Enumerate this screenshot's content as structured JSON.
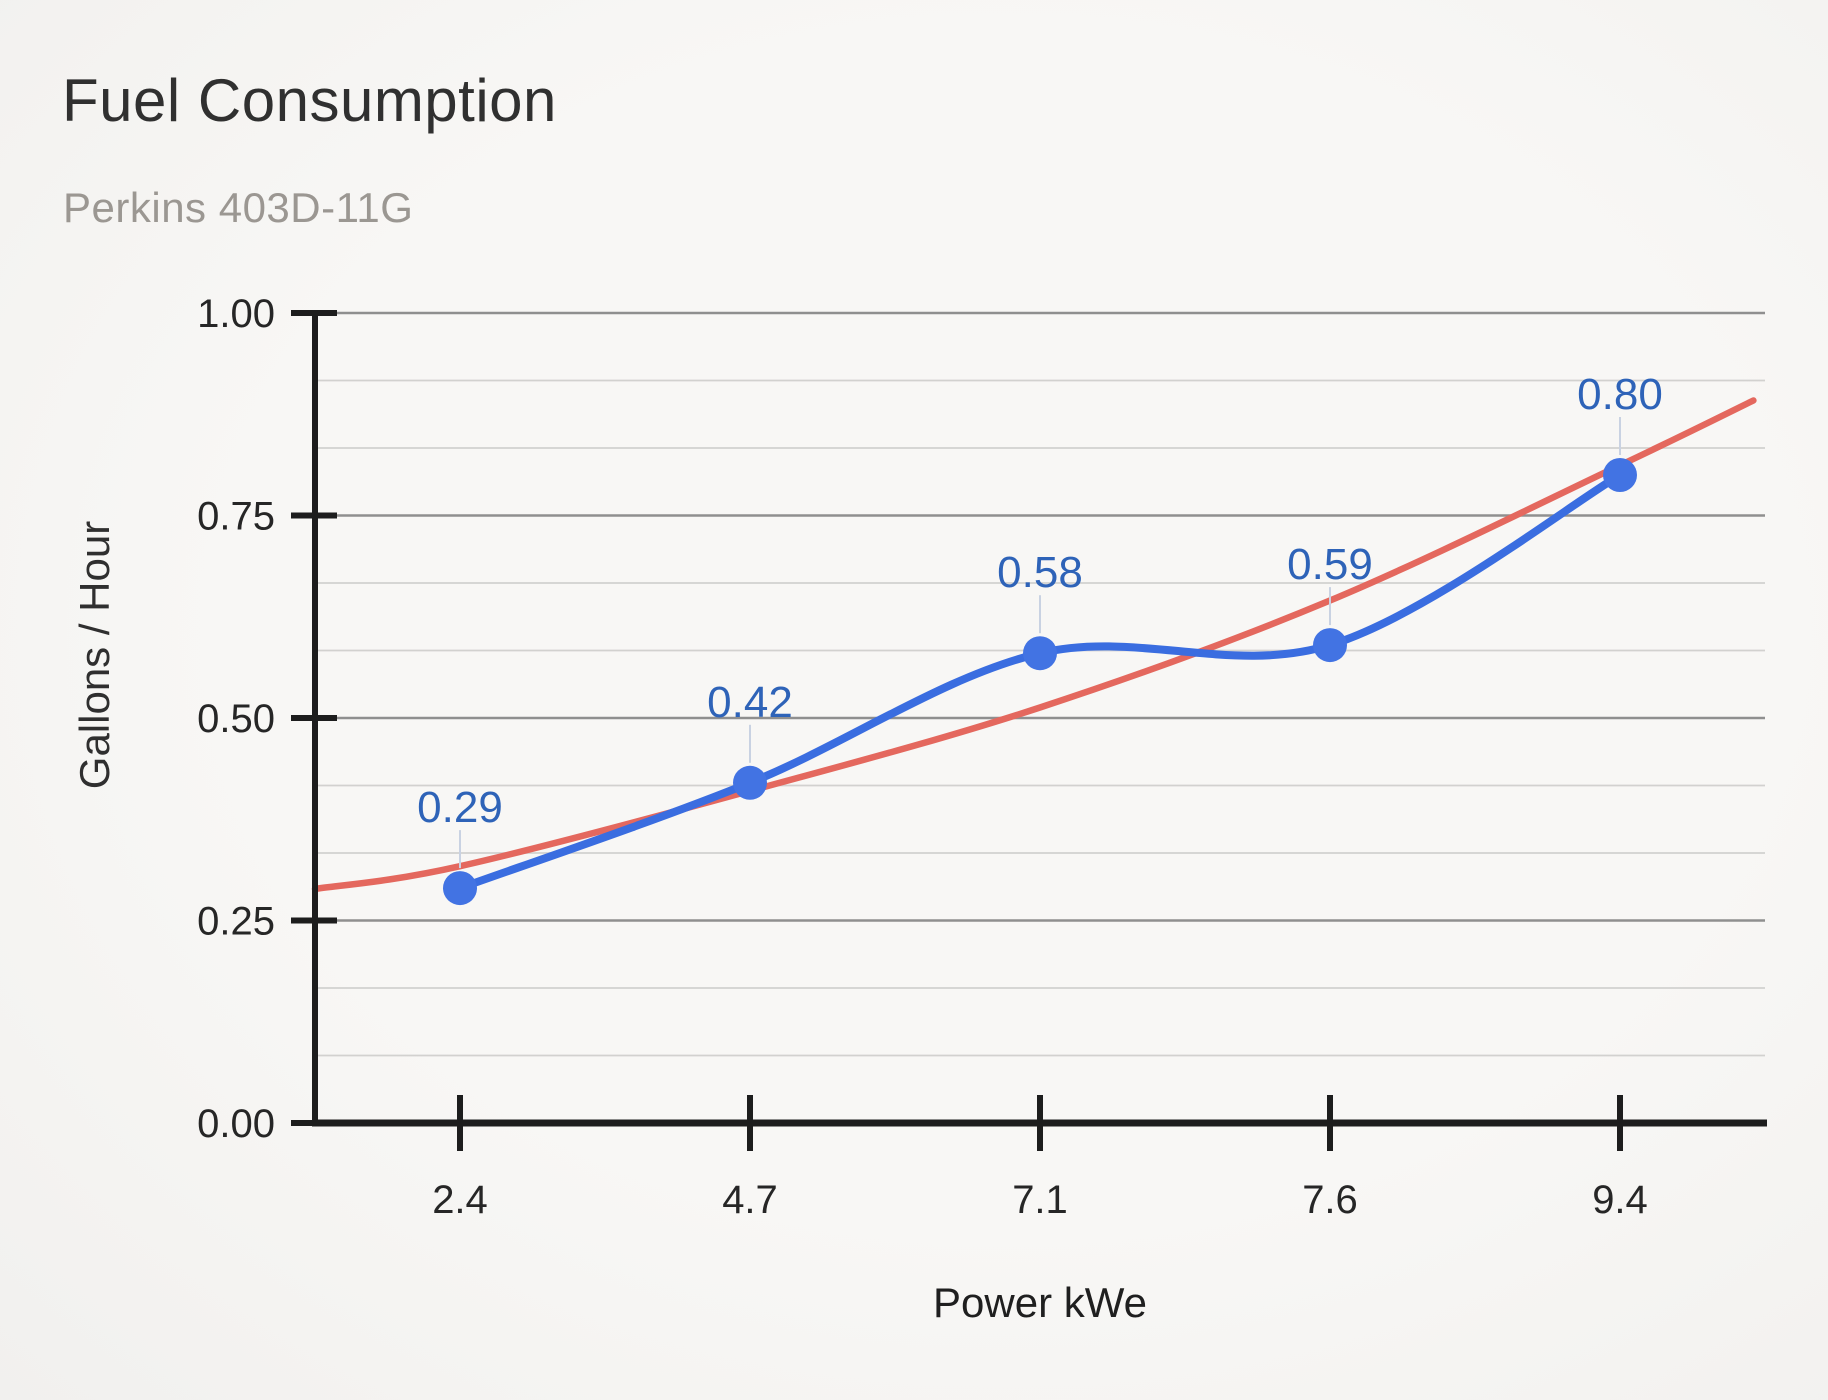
{
  "page": {
    "background": "#f6f5f3"
  },
  "chart": {
    "title": "Fuel Consumption",
    "subtitle": "Perkins 403D-11G",
    "xlabel": "Power kWe",
    "ylabel": "Gallons / Hour"
  },
  "chart_data": {
    "type": "line",
    "title": "Fuel Consumption",
    "subtitle": "Perkins 403D-11G",
    "xlabel": "Power kWe",
    "ylabel": "Gallons / Hour",
    "categories": [
      "2.4",
      "4.7",
      "7.1",
      "7.6",
      "9.4"
    ],
    "series": [
      {
        "name": "Gallons / Hour",
        "line_style": "smooth",
        "color": "#3a6de0",
        "point_color": "#4273e3",
        "values": [
          0.29,
          0.42,
          0.58,
          0.59,
          0.8
        ],
        "point_labels": [
          "0.29",
          "0.42",
          "0.58",
          "0.59",
          "0.80"
        ],
        "label_color": "#2e63b8"
      }
    ],
    "trendline": {
      "color": "#e4685e",
      "shape": "exponential",
      "samples_fraction_value": [
        [
          0.0,
          0.289
        ],
        [
          0.1,
          0.317
        ],
        [
          0.3,
          0.41
        ],
        [
          0.5,
          0.513
        ],
        [
          0.7,
          0.645
        ],
        [
          0.9,
          0.812
        ],
        [
          0.992,
          0.892
        ]
      ]
    },
    "ylim": [
      0,
      1
    ],
    "yticks": [
      {
        "value": 1.0,
        "label": "1.00"
      },
      {
        "value": 0.75,
        "label": "0.75"
      },
      {
        "value": 0.5,
        "label": "0.50"
      },
      {
        "value": 0.25,
        "label": "0.25"
      },
      {
        "value": 0.0,
        "label": "0.00"
      }
    ],
    "grid": {
      "on": true,
      "major_color": "#8f8f8f",
      "minor_color": "#d2d1cf",
      "minor_divisions_per_major": 3
    },
    "axis_color": "#1d1d1d",
    "tick_label_color": "#262626",
    "legend_position": "none"
  }
}
